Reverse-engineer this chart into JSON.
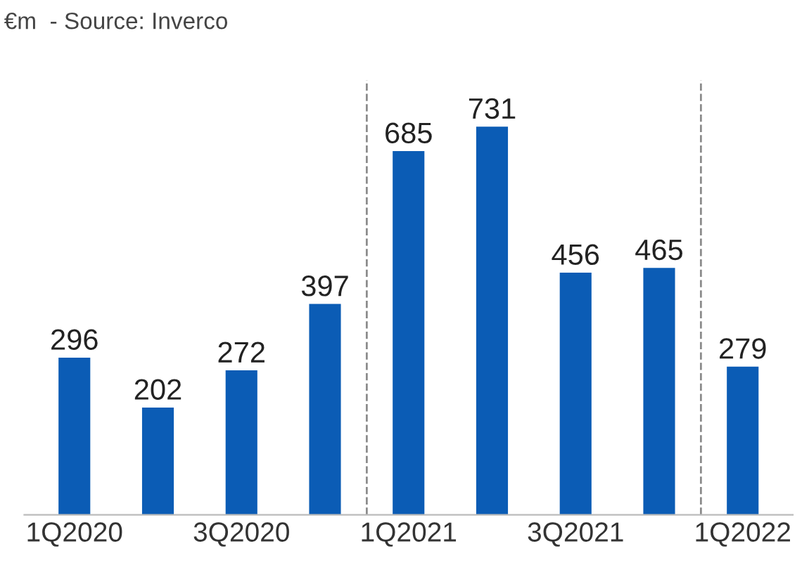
{
  "chart_data": {
    "type": "bar",
    "title": "€m  - Source: Inverco",
    "categories": [
      "1Q2020",
      null,
      "3Q2020",
      null,
      "1Q2021",
      null,
      "3Q2021",
      null,
      "1Q2022"
    ],
    "values": [
      296,
      202,
      272,
      397,
      685,
      731,
      456,
      465,
      279
    ],
    "color": "#0b5cb5",
    "data_labels": true,
    "grid": false,
    "legend": false
  }
}
